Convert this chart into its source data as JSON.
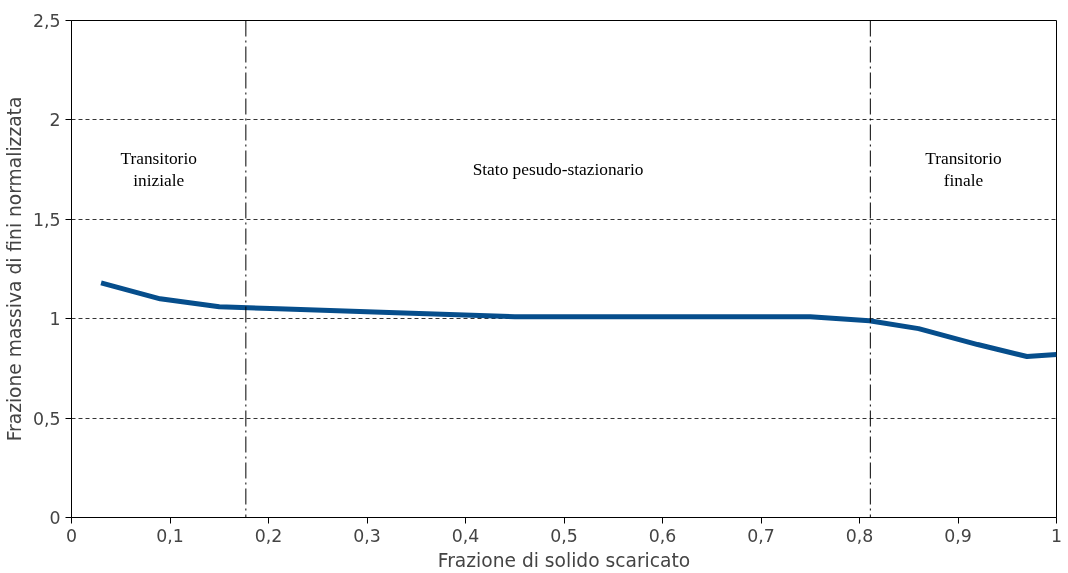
{
  "chart_data": {
    "type": "line",
    "xlabel": "Frazione di solido scaricato",
    "ylabel": "Frazione massiva di fini normalizzata",
    "x": [
      0.03,
      0.09,
      0.15,
      0.21,
      0.33,
      0.45,
      0.57,
      0.69,
      0.75,
      0.81,
      0.86,
      0.92,
      0.97,
      1.0
    ],
    "series": [
      {
        "color": "#064e8c",
        "values": [
          1.18,
          1.1,
          1.06,
          1.05,
          1.03,
          1.01,
          1.01,
          1.01,
          1.01,
          0.99,
          0.95,
          0.87,
          0.81,
          0.82
        ]
      }
    ],
    "xlim": [
      0,
      1
    ],
    "ylim": [
      0,
      2.5
    ],
    "xticks": [
      0,
      {
        "value": 0.1,
        "label": "0,1"
      },
      {
        "value": 0.2,
        "label": "0,2"
      },
      {
        "value": 0.3,
        "label": "0,3"
      },
      {
        "value": 0.4,
        "label": "0,4"
      },
      {
        "value": 0.5,
        "label": "0,5"
      },
      {
        "value": 0.6,
        "label": "0,6"
      },
      {
        "value": 0.7,
        "label": "0,7"
      },
      {
        "value": 0.8,
        "label": "0,8"
      },
      {
        "value": 0.9,
        "label": "0,9"
      },
      1
    ],
    "yticks": [
      0,
      {
        "value": 0.5,
        "label": "0,5"
      },
      1,
      {
        "value": 1.5,
        "label": "1,5"
      },
      2,
      {
        "value": 2.5,
        "label": "2,5"
      }
    ],
    "grid": "y",
    "marker": "none",
    "line_style": "solid",
    "ref_lines": [
      {
        "axis": "x",
        "value": 0.177,
        "color": "#000000",
        "line_style": "dashdot"
      },
      {
        "axis": "x",
        "value": 0.811,
        "color": "#000000",
        "line_style": "dashdot"
      }
    ],
    "annotations": [
      "Transitorio\niniziale",
      "Stato pesudo-stazionario",
      "Transitorio\nfinale"
    ]
  }
}
